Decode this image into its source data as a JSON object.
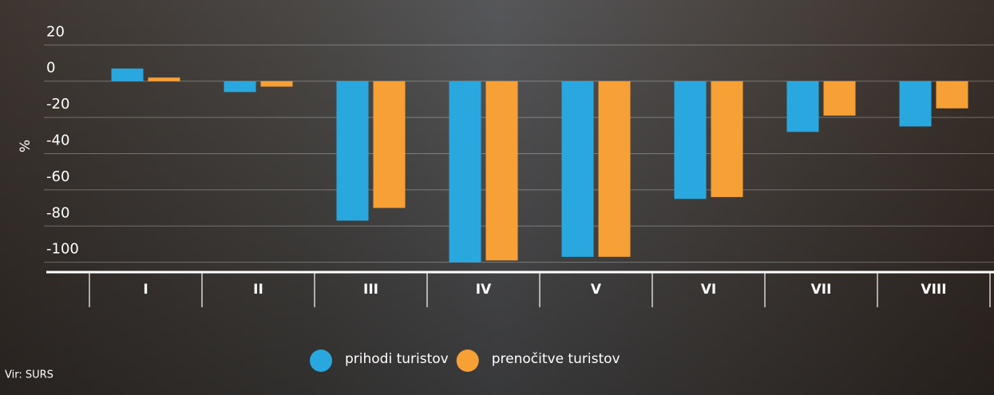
{
  "chart_data": {
    "type": "bar",
    "y_label": "%",
    "source": "Vir: SURS",
    "categories": [
      "I",
      "II",
      "III",
      "IV",
      "V",
      "VI",
      "VII",
      "VIII"
    ],
    "series": [
      {
        "name": "prihodi turistov",
        "color": "#29a8e0",
        "values": [
          7,
          -6,
          -77,
          -100,
          -97,
          -65,
          -28,
          -25
        ]
      },
      {
        "name": "prenočitve turistov",
        "color": "#f7a035",
        "values": [
          2,
          -3,
          -70,
          -99,
          -97,
          -64,
          -19,
          -15
        ]
      }
    ],
    "ylim": [
      -105,
      25
    ],
    "yticks": [
      20,
      0,
      -20,
      -40,
      -60,
      -80,
      -100
    ],
    "grid": true
  }
}
